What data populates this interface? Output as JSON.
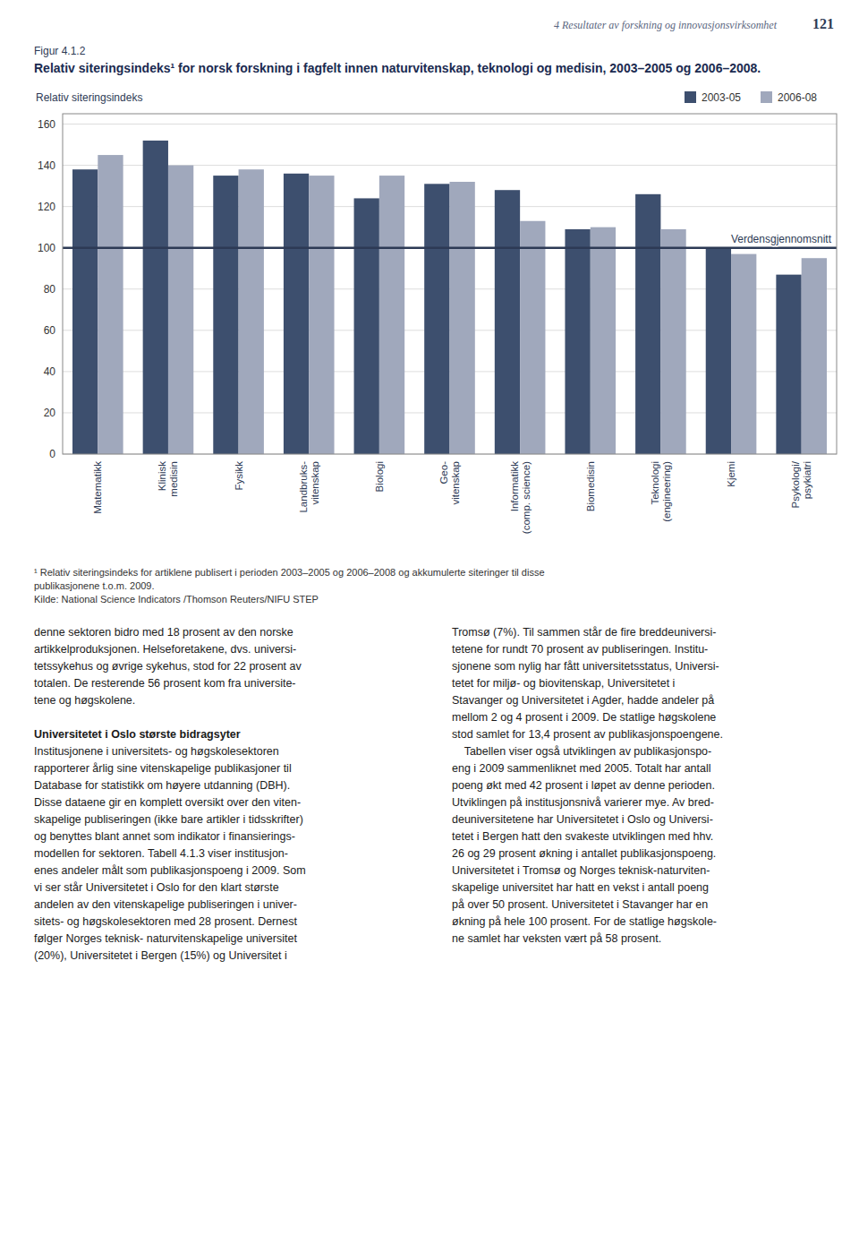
{
  "page_header": "4 Resultater av forskning og innovasjonsvirksomhet",
  "page_number": "121",
  "figure_label": "Figur 4.1.2",
  "chart_data": {
    "type": "bar",
    "title": "Relativ siteringsindeks¹ for norsk forskning i fagfelt innen naturvitenskap, teknologi og medisin, 2003–2005 og 2006–2008.",
    "ylabel": "Relativ siteringsindeks",
    "categories": [
      "Matematikk",
      "Klinisk\nmedisin",
      "Fysikk",
      "Landbruks-\nvitenskap",
      "Biologi",
      "Geo-\nvitenskap",
      "Informatikk\n(comp. science)",
      "Biomedisin",
      "Teknologi\n(engineering)",
      "Kjemi",
      "Psykologi/\npsykiatri"
    ],
    "series": [
      {
        "name": "2003-05",
        "color": "#3d4f6e",
        "values": [
          138,
          152,
          135,
          136,
          124,
          131,
          128,
          109,
          126,
          100,
          87
        ]
      },
      {
        "name": "2006-08",
        "color": "#a0a8bc",
        "values": [
          145,
          140,
          138,
          135,
          135,
          132,
          113,
          110,
          109,
          97,
          95
        ]
      }
    ],
    "ylim": [
      0,
      165
    ],
    "yticks": [
      0,
      20,
      40,
      60,
      80,
      100,
      120,
      140,
      160
    ],
    "grid": true,
    "legend": "top",
    "annotations": [
      {
        "text": "Verdensgjennomsnitt",
        "y": 100
      }
    ]
  },
  "footnotes": [
    "¹ Relativ siteringsindeks for artiklene publisert i perioden 2003–2005 og 2006–2008 og akkumulerte siteringer til disse",
    "publikasjonene t.o.m. 2009."
  ],
  "source": "Kilde: National Science Indicators /Thomson Reuters/NIFU STEP",
  "body_left": [
    {
      "lines": [
        "denne sektoren bidro med 18 prosent av den norske",
        "artikkelproduksjonen. Helseforetakene, dvs. universi-",
        "tetssykehus og øvrige sykehus, stod for 22 prosent av",
        "totalen. De resterende 56 prosent kom fra universite-",
        "tene og høgskolene."
      ]
    },
    {
      "heading": "Universitetet i Oslo største bidragsyter",
      "lines": [
        "Institusjonene i universitets- og høgskolesektoren",
        "rapporterer årlig sine vitenskapelige publikasjoner til",
        "Database for statistikk om høyere utdanning (DBH).",
        "Disse dataene gir en komplett oversikt over den viten-",
        "skapelige publiseringen (ikke bare artikler i tidsskrifter)",
        "og benyttes blant annet som indikator i finansierings-",
        "modellen for sektoren. Tabell 4.1.3 viser institusjon-",
        "enes andeler målt som publikasjonspoeng i 2009. Som",
        "vi ser står Universitetet i Oslo for den klart største",
        "andelen av den vitenskapelige publiseringen i univer-",
        "sitets- og høgskolesektoren med 28 prosent. Dernest",
        "følger Norges teknisk- naturvitenskapelige universitet",
        "(20%), Universitetet i Bergen (15%) og Universitet i"
      ]
    }
  ],
  "body_right": [
    {
      "lines": [
        "Tromsø (7%). Til sammen står de fire breddeuniversi-",
        "tetene for rundt 70 prosent av publiseringen. Institu-",
        "sjonene som nylig har fått universitetsstatus, Universi-",
        "tetet for miljø- og biovitenskap, Universitetet i",
        "Stavanger og Universitetet i Agder, hadde andeler på",
        "mellom 2 og 4 prosent i 2009. De statlige høgskolene",
        "stod samlet for 13,4 prosent av publikasjonspoengene.",
        "    Tabellen viser også utviklingen av publikasjonspo-",
        "eng i 2009 sammenliknet med 2005. Totalt har antall",
        "poeng økt med 42 prosent i løpet av denne perioden.",
        "Utviklingen på institusjonsnivå varierer mye. Av bred-",
        "deuniversitetene har Universitetet i Oslo og Universi-",
        "tetet i Bergen hatt den svakeste utviklingen med hhv.",
        "26 og 29 prosent økning i antallet publikasjonspoeng.",
        "Universitetet i Tromsø og Norges teknisk-naturviten-",
        "skapelige universitet har hatt en vekst i antall poeng",
        "på over 50 prosent. Universitetet i Stavanger har en",
        "økning på hele 100 prosent. For de statlige høgskole-",
        "ne samlet har veksten vært på 58 prosent."
      ]
    }
  ]
}
